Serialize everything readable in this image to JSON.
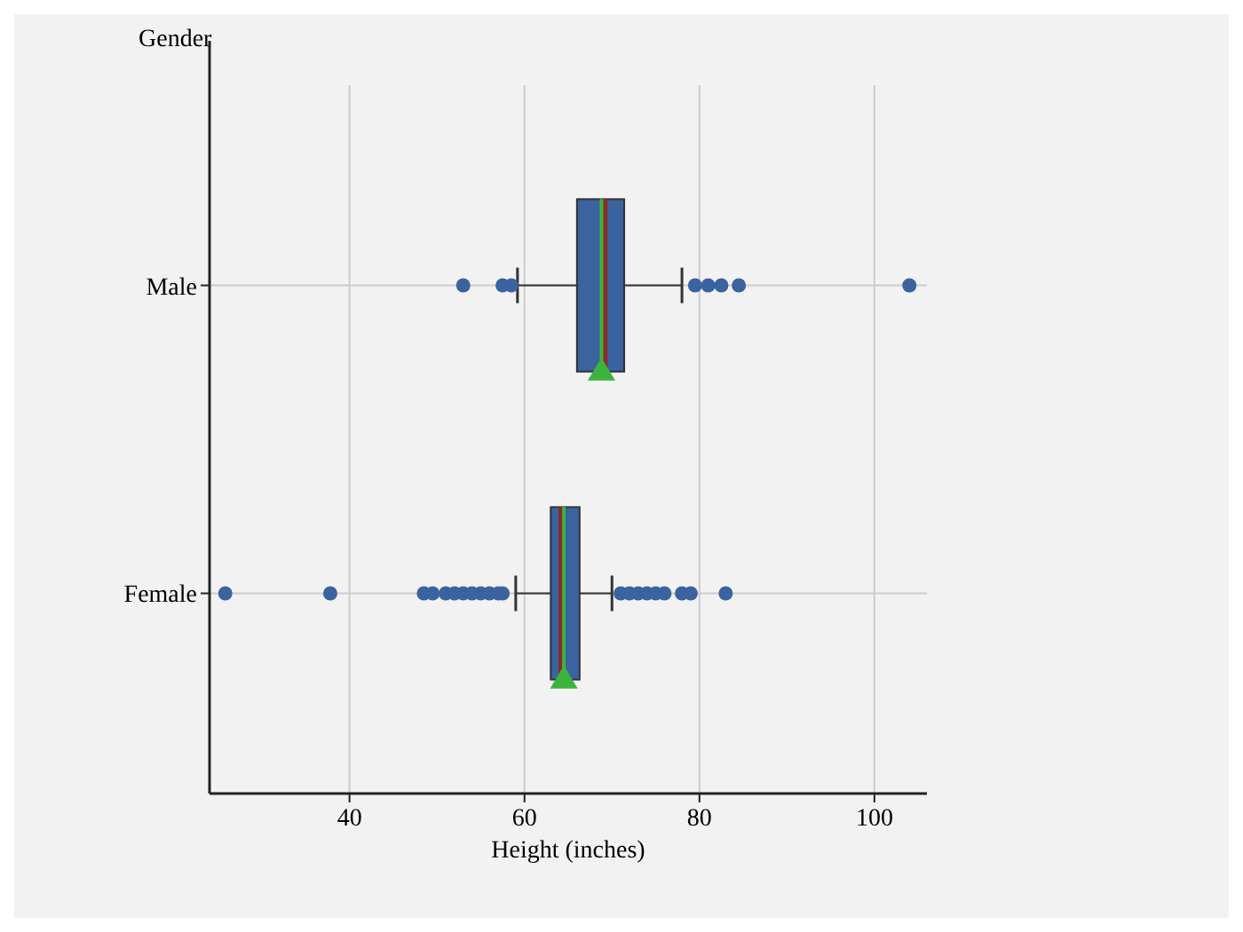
{
  "chart_data": {
    "type": "box",
    "orientation": "horizontal",
    "ylabel": "Gender",
    "xlabel": "Height (inches)",
    "categories": [
      "Male",
      "Female"
    ],
    "xlim": [
      24,
      106
    ],
    "xticks": [
      40,
      60,
      80,
      100
    ],
    "grid": true,
    "series": [
      {
        "color": "#3a63a0",
        "boxes": [
          {
            "low": 59.2,
            "q1": 66,
            "median": 69.2,
            "q3": 71.4,
            "high": 78,
            "mean": 68.8,
            "outliers": [
              53,
              57.5,
              58.5,
              79.5,
              81,
              82.5,
              84.5,
              104
            ]
          },
          {
            "low": 59,
            "q1": 63,
            "median": 64.2,
            "q3": 66.3,
            "high": 70,
            "mean": 64.5,
            "outliers": [
              25.8,
              37.8,
              48.5,
              49.5,
              51,
              52,
              53,
              54,
              55,
              56,
              57,
              57.5,
              71,
              72,
              73,
              74,
              75,
              76,
              78,
              79,
              83
            ]
          }
        ]
      }
    ]
  }
}
